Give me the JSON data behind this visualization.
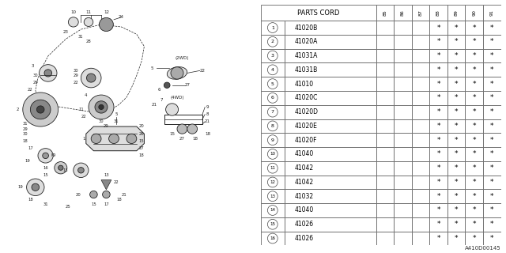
{
  "title": "PARTS CORD",
  "columns": [
    "85",
    "86",
    "87",
    "88",
    "89",
    "90",
    "91"
  ],
  "rows": [
    {
      "num": 1,
      "code": "41020B",
      "stars": [
        0,
        0,
        0,
        1,
        1,
        1,
        1
      ]
    },
    {
      "num": 2,
      "code": "41020A",
      "stars": [
        0,
        0,
        0,
        1,
        1,
        1,
        1
      ]
    },
    {
      "num": 3,
      "code": "41031A",
      "stars": [
        0,
        0,
        0,
        1,
        1,
        1,
        1
      ]
    },
    {
      "num": 4,
      "code": "41031B",
      "stars": [
        0,
        0,
        0,
        1,
        1,
        1,
        1
      ]
    },
    {
      "num": 5,
      "code": "41010",
      "stars": [
        0,
        0,
        0,
        1,
        1,
        1,
        1
      ]
    },
    {
      "num": 6,
      "code": "41020C",
      "stars": [
        0,
        0,
        0,
        1,
        1,
        1,
        1
      ]
    },
    {
      "num": 7,
      "code": "41020D",
      "stars": [
        0,
        0,
        0,
        1,
        1,
        1,
        1
      ]
    },
    {
      "num": 8,
      "code": "41020E",
      "stars": [
        0,
        0,
        0,
        1,
        1,
        1,
        1
      ]
    },
    {
      "num": 9,
      "code": "41020F",
      "stars": [
        0,
        0,
        0,
        1,
        1,
        1,
        1
      ]
    },
    {
      "num": 10,
      "code": "41040",
      "stars": [
        0,
        0,
        0,
        1,
        1,
        1,
        1
      ]
    },
    {
      "num": 11,
      "code": "41042",
      "stars": [
        0,
        0,
        0,
        1,
        1,
        1,
        1
      ]
    },
    {
      "num": 12,
      "code": "41042",
      "stars": [
        0,
        0,
        0,
        1,
        1,
        1,
        1
      ]
    },
    {
      "num": 13,
      "code": "41032",
      "stars": [
        0,
        0,
        0,
        1,
        1,
        1,
        1
      ]
    },
    {
      "num": 14,
      "code": "41040",
      "stars": [
        0,
        0,
        0,
        1,
        1,
        1,
        1
      ]
    },
    {
      "num": 15,
      "code": "41026",
      "stars": [
        0,
        0,
        0,
        1,
        1,
        1,
        1
      ]
    },
    {
      "num": 16,
      "code": "41026",
      "stars": [
        0,
        0,
        0,
        1,
        1,
        1,
        1
      ]
    }
  ],
  "bg_color": "#ffffff",
  "border_color": "#666666",
  "footer": "A410D00145"
}
